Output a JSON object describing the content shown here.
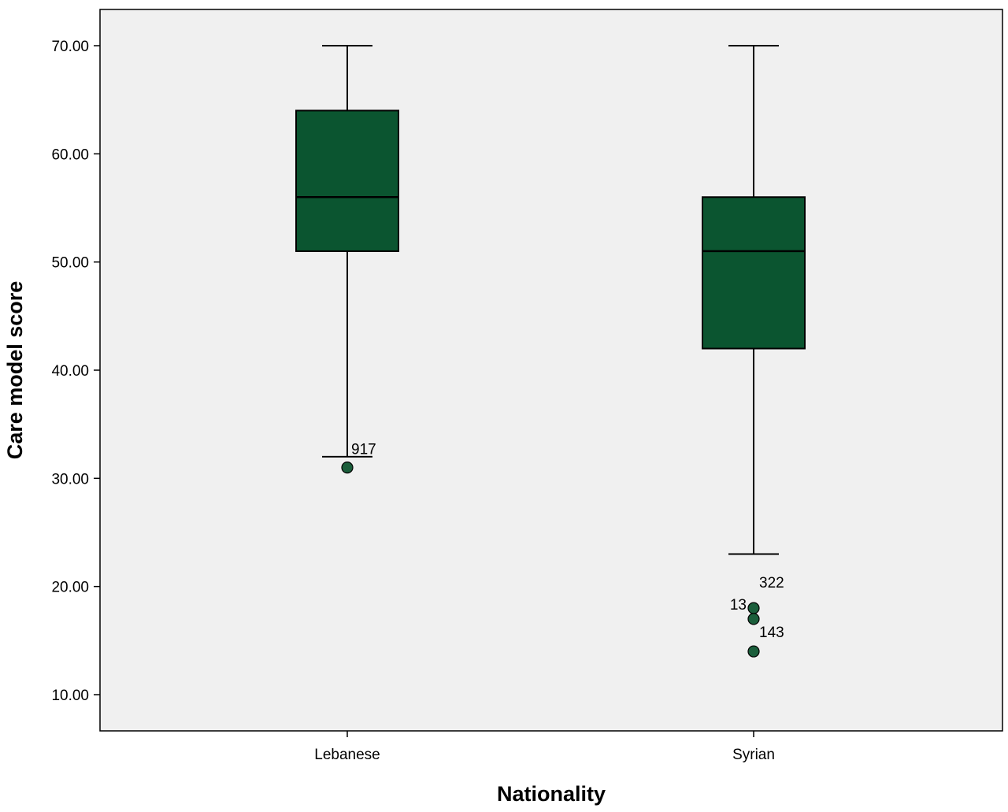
{
  "chart_data": {
    "type": "boxplot",
    "title": "",
    "xlabel": "Nationality",
    "ylabel": "Care model score",
    "ylim": [
      5,
      72
    ],
    "yticks": [
      10,
      20,
      30,
      40,
      50,
      60,
      70
    ],
    "ytick_labels": [
      "10.00",
      "20.00",
      "30.00",
      "40.00",
      "50.00",
      "60.00",
      "70.00"
    ],
    "grid": false,
    "legend": "none",
    "categories": [
      "Lebanese",
      "Syrian"
    ],
    "boxes": [
      {
        "category": "Lebanese",
        "whisker_low": 32,
        "q1": 51,
        "median": 56,
        "q3": 64,
        "whisker_high": 70,
        "outliers": [
          {
            "value": 31,
            "label": "917"
          }
        ]
      },
      {
        "category": "Syrian",
        "whisker_low": 23,
        "q1": 42,
        "median": 51,
        "q3": 56,
        "whisker_high": 70,
        "outliers": [
          {
            "value": 18,
            "label": "322"
          },
          {
            "value": 17,
            "label": "13"
          },
          {
            "value": 14,
            "label": "143"
          }
        ]
      }
    ],
    "colors": {
      "plot_background": "#f0f0f0",
      "box_fill": "#0b5530",
      "outlier_fill": "#1b5e3b",
      "line": "#000000"
    }
  }
}
